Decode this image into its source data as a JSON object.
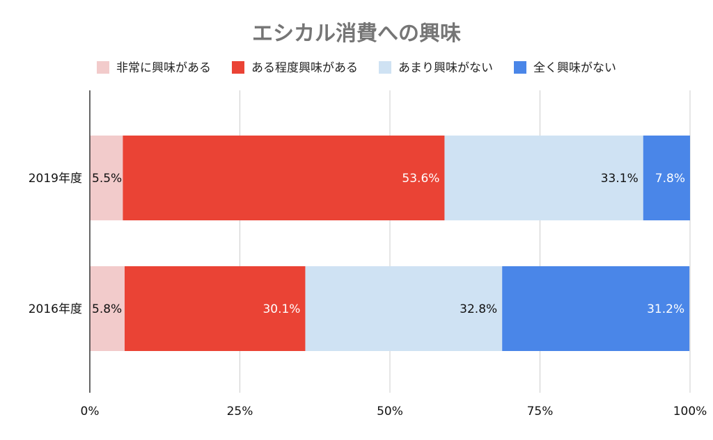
{
  "chart_data": {
    "type": "bar",
    "orientation": "horizontal",
    "stacked": "percent",
    "title": "エシカル消費への興味",
    "categories": [
      "2019年度",
      "2016年度"
    ],
    "series": [
      {
        "name": "非常に興味がある",
        "color": "#f2cbcb",
        "label_color": "#111111",
        "values": [
          5.5,
          5.8
        ]
      },
      {
        "name": "ある程度興味がある",
        "color": "#ea4335",
        "label_color": "#ffffff",
        "values": [
          53.6,
          30.1
        ]
      },
      {
        "name": "あまり興味がない",
        "color": "#cfe2f3",
        "label_color": "#111111",
        "values": [
          33.1,
          32.8
        ]
      },
      {
        "name": "全く興味がない",
        "color": "#4a86e8",
        "label_color": "#ffffff",
        "values": [
          7.8,
          31.2
        ]
      }
    ],
    "data_labels": [
      [
        "5.5%",
        "53.6%",
        "33.1%",
        "7.8%"
      ],
      [
        "5.8%",
        "30.1%",
        "32.8%",
        "31.2%"
      ]
    ],
    "x_ticks": [
      "0%",
      "25%",
      "50%",
      "75%",
      "100%"
    ],
    "xlim": [
      0,
      100
    ],
    "legend_position": "top",
    "grid": true
  }
}
